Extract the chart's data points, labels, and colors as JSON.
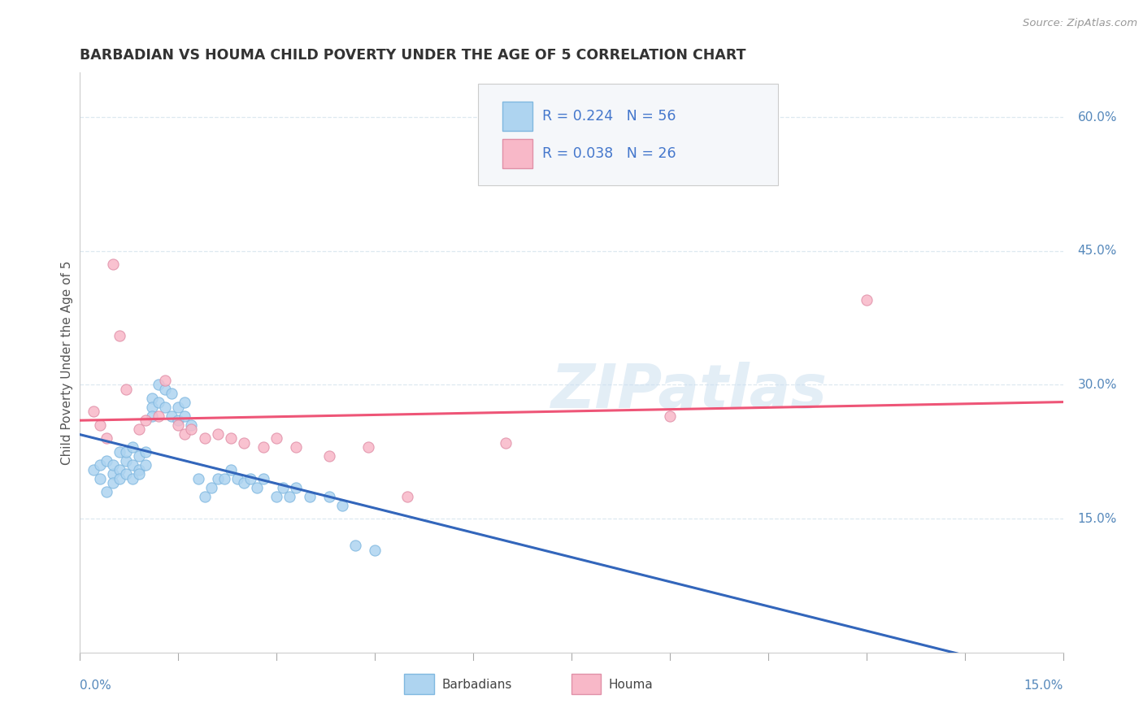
{
  "title": "BARBADIAN VS HOUMA CHILD POVERTY UNDER THE AGE OF 5 CORRELATION CHART",
  "source": "Source: ZipAtlas.com",
  "ylabel": "Child Poverty Under the Age of 5",
  "ytick_labels": [
    "15.0%",
    "30.0%",
    "45.0%",
    "60.0%"
  ],
  "ytick_values": [
    0.15,
    0.3,
    0.45,
    0.6
  ],
  "xlim": [
    0.0,
    0.15
  ],
  "ylim": [
    0.0,
    0.65
  ],
  "r1": 0.224,
  "n1": 56,
  "r2": 0.038,
  "n2": 26,
  "watermark": "ZIPatlas",
  "barbadian_color": "#aed4f0",
  "barbadian_edge": "#80b8e0",
  "houma_color": "#f8b8c8",
  "houma_edge": "#e090a8",
  "trendline1_color": "#3366bb",
  "trendline2_color": "#ee5577",
  "trendline1_dash_color": "#aaccee",
  "gridline_color": "#dde8f0",
  "bg_color": "#ffffff",
  "barbadians_x": [
    0.002,
    0.003,
    0.003,
    0.004,
    0.004,
    0.005,
    0.005,
    0.005,
    0.006,
    0.006,
    0.006,
    0.007,
    0.007,
    0.007,
    0.008,
    0.008,
    0.008,
    0.009,
    0.009,
    0.009,
    0.01,
    0.01,
    0.011,
    0.011,
    0.011,
    0.012,
    0.012,
    0.013,
    0.013,
    0.014,
    0.014,
    0.015,
    0.015,
    0.016,
    0.016,
    0.017,
    0.018,
    0.019,
    0.02,
    0.021,
    0.022,
    0.023,
    0.024,
    0.025,
    0.026,
    0.027,
    0.028,
    0.03,
    0.031,
    0.032,
    0.033,
    0.035,
    0.038,
    0.04,
    0.042,
    0.045
  ],
  "barbadians_y": [
    0.205,
    0.195,
    0.21,
    0.18,
    0.215,
    0.2,
    0.19,
    0.21,
    0.225,
    0.205,
    0.195,
    0.2,
    0.215,
    0.225,
    0.21,
    0.195,
    0.23,
    0.205,
    0.22,
    0.2,
    0.225,
    0.21,
    0.285,
    0.275,
    0.265,
    0.3,
    0.28,
    0.295,
    0.275,
    0.265,
    0.29,
    0.275,
    0.26,
    0.265,
    0.28,
    0.255,
    0.195,
    0.175,
    0.185,
    0.195,
    0.195,
    0.205,
    0.195,
    0.19,
    0.195,
    0.185,
    0.195,
    0.175,
    0.185,
    0.175,
    0.185,
    0.175,
    0.175,
    0.165,
    0.12,
    0.115
  ],
  "houma_x": [
    0.002,
    0.003,
    0.004,
    0.005,
    0.006,
    0.007,
    0.009,
    0.01,
    0.012,
    0.013,
    0.015,
    0.016,
    0.017,
    0.019,
    0.021,
    0.023,
    0.025,
    0.028,
    0.03,
    0.033,
    0.038,
    0.044,
    0.05,
    0.065,
    0.09,
    0.12
  ],
  "houma_y": [
    0.27,
    0.255,
    0.24,
    0.435,
    0.355,
    0.295,
    0.25,
    0.26,
    0.265,
    0.305,
    0.255,
    0.245,
    0.25,
    0.24,
    0.245,
    0.24,
    0.235,
    0.23,
    0.24,
    0.23,
    0.22,
    0.23,
    0.175,
    0.235,
    0.265,
    0.395
  ]
}
